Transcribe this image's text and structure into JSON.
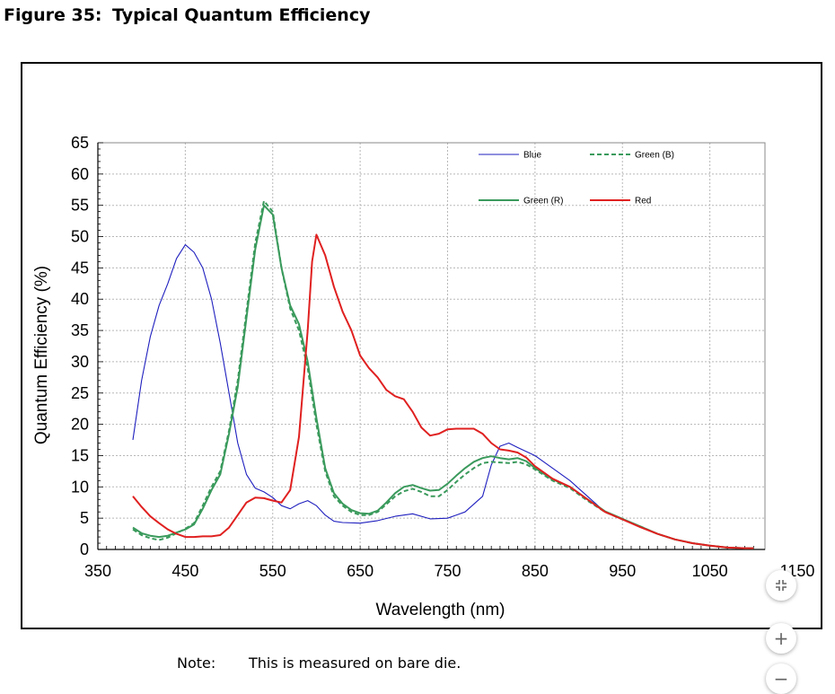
{
  "figure": {
    "number": "Figure 35:",
    "title": "Typical Quantum Efficiency"
  },
  "note": {
    "label": "Note:",
    "text": "This is measured on bare die."
  },
  "controls": {
    "fit_icon": "fit-to-screen-icon",
    "zoom_in_icon": "plus-icon",
    "zoom_out_icon": "minus-icon",
    "zoom_in_label": "+",
    "zoom_out_label": "−"
  },
  "chart_data": {
    "type": "line",
    "title": "",
    "xlabel": "Wavelength (nm)",
    "ylabel": "Quantum Efficiency (%)",
    "xlim": [
      350,
      1150
    ],
    "ylim": [
      0,
      65
    ],
    "xticks": [
      "350",
      "450",
      "550",
      "650",
      "750",
      "850",
      "950",
      "1050",
      "1150"
    ],
    "yticks": [
      "0",
      "5",
      "10",
      "15",
      "20",
      "25",
      "30",
      "35",
      "40",
      "45",
      "50",
      "55",
      "60",
      "65"
    ],
    "grid": true,
    "legend_position": "top-right",
    "series": [
      {
        "name": "Blue",
        "color": "#1f1fbf",
        "style": "solid",
        "points": [
          [
            390,
            17.5
          ],
          [
            400,
            27
          ],
          [
            410,
            34
          ],
          [
            420,
            39
          ],
          [
            430,
            42.5
          ],
          [
            440,
            46.5
          ],
          [
            450,
            48.7
          ],
          [
            460,
            47.5
          ],
          [
            470,
            45
          ],
          [
            480,
            40
          ],
          [
            490,
            33
          ],
          [
            500,
            25
          ],
          [
            510,
            17
          ],
          [
            520,
            12
          ],
          [
            530,
            9.8
          ],
          [
            540,
            9.2
          ],
          [
            550,
            8.3
          ],
          [
            560,
            7.0
          ],
          [
            570,
            6.5
          ],
          [
            580,
            7.3
          ],
          [
            590,
            7.8
          ],
          [
            600,
            7.0
          ],
          [
            610,
            5.5
          ],
          [
            620,
            4.5
          ],
          [
            630,
            4.3
          ],
          [
            650,
            4.2
          ],
          [
            670,
            4.6
          ],
          [
            690,
            5.3
          ],
          [
            710,
            5.7
          ],
          [
            730,
            4.9
          ],
          [
            750,
            5.0
          ],
          [
            770,
            6.0
          ],
          [
            790,
            8.5
          ],
          [
            800,
            13.5
          ],
          [
            810,
            16.5
          ],
          [
            820,
            17.0
          ],
          [
            830,
            16.3
          ],
          [
            850,
            15.0
          ],
          [
            870,
            13.0
          ],
          [
            890,
            11.0
          ],
          [
            910,
            8.5
          ],
          [
            930,
            6.0
          ],
          [
            950,
            4.8
          ],
          [
            970,
            3.6
          ],
          [
            990,
            2.5
          ],
          [
            1010,
            1.6
          ],
          [
            1030,
            1.0
          ],
          [
            1050,
            0.6
          ],
          [
            1070,
            0.3
          ],
          [
            1090,
            0.2
          ],
          [
            1100,
            0.2
          ]
        ]
      },
      {
        "name": "Green (B)",
        "color": "#3a9a5c",
        "style": "dashed",
        "points": [
          [
            390,
            3.2
          ],
          [
            400,
            2.3
          ],
          [
            410,
            1.8
          ],
          [
            420,
            1.5
          ],
          [
            430,
            1.9
          ],
          [
            440,
            2.6
          ],
          [
            450,
            3.3
          ],
          [
            460,
            4.2
          ],
          [
            470,
            7.0
          ],
          [
            480,
            10.0
          ],
          [
            490,
            12.5
          ],
          [
            500,
            19
          ],
          [
            510,
            27
          ],
          [
            520,
            38
          ],
          [
            530,
            49
          ],
          [
            540,
            55.7
          ],
          [
            550,
            54
          ],
          [
            560,
            45
          ],
          [
            570,
            38.5
          ],
          [
            580,
            35
          ],
          [
            590,
            29
          ],
          [
            600,
            20
          ],
          [
            610,
            12.5
          ],
          [
            620,
            8.5
          ],
          [
            630,
            7.0
          ],
          [
            640,
            6.0
          ],
          [
            650,
            5.5
          ],
          [
            660,
            5.5
          ],
          [
            670,
            6.0
          ],
          [
            680,
            7.2
          ],
          [
            690,
            8.5
          ],
          [
            700,
            9.3
          ],
          [
            710,
            9.7
          ],
          [
            720,
            9.2
          ],
          [
            730,
            8.5
          ],
          [
            740,
            8.5
          ],
          [
            750,
            9.5
          ],
          [
            760,
            10.8
          ],
          [
            770,
            12.0
          ],
          [
            780,
            13.0
          ],
          [
            790,
            13.8
          ],
          [
            800,
            14.0
          ],
          [
            810,
            13.9
          ],
          [
            820,
            13.8
          ],
          [
            830,
            14.0
          ],
          [
            840,
            13.6
          ],
          [
            850,
            12.8
          ],
          [
            870,
            11.0
          ],
          [
            890,
            9.8
          ],
          [
            910,
            7.8
          ],
          [
            930,
            6.0
          ],
          [
            950,
            4.8
          ],
          [
            970,
            3.7
          ],
          [
            990,
            2.5
          ],
          [
            1010,
            1.6
          ],
          [
            1030,
            1.0
          ],
          [
            1050,
            0.6
          ],
          [
            1070,
            0.3
          ],
          [
            1090,
            0.2
          ],
          [
            1100,
            0.2
          ]
        ]
      },
      {
        "name": "Green (R)",
        "color": "#3a9a5c",
        "style": "solid",
        "points": [
          [
            390,
            3.5
          ],
          [
            400,
            2.6
          ],
          [
            410,
            2.2
          ],
          [
            420,
            2.0
          ],
          [
            430,
            2.2
          ],
          [
            440,
            2.7
          ],
          [
            450,
            3.2
          ],
          [
            460,
            4.0
          ],
          [
            470,
            6.5
          ],
          [
            480,
            9.5
          ],
          [
            490,
            12.0
          ],
          [
            500,
            18.5
          ],
          [
            510,
            26
          ],
          [
            520,
            37
          ],
          [
            530,
            48
          ],
          [
            540,
            55
          ],
          [
            550,
            53.5
          ],
          [
            560,
            45
          ],
          [
            570,
            39
          ],
          [
            580,
            36
          ],
          [
            590,
            30
          ],
          [
            600,
            21
          ],
          [
            610,
            13
          ],
          [
            620,
            9.0
          ],
          [
            630,
            7.3
          ],
          [
            640,
            6.3
          ],
          [
            650,
            5.8
          ],
          [
            660,
            5.7
          ],
          [
            670,
            6.2
          ],
          [
            680,
            7.5
          ],
          [
            690,
            9.0
          ],
          [
            700,
            10.0
          ],
          [
            710,
            10.3
          ],
          [
            720,
            9.8
          ],
          [
            730,
            9.4
          ],
          [
            740,
            9.5
          ],
          [
            750,
            10.5
          ],
          [
            760,
            11.8
          ],
          [
            770,
            13.0
          ],
          [
            780,
            14.0
          ],
          [
            790,
            14.6
          ],
          [
            800,
            14.9
          ],
          [
            810,
            14.6
          ],
          [
            820,
            14.4
          ],
          [
            830,
            14.6
          ],
          [
            840,
            14.1
          ],
          [
            850,
            13.0
          ],
          [
            870,
            11.2
          ],
          [
            890,
            10.0
          ],
          [
            910,
            8.0
          ],
          [
            930,
            6.1
          ],
          [
            950,
            4.9
          ],
          [
            970,
            3.7
          ],
          [
            990,
            2.5
          ],
          [
            1010,
            1.6
          ],
          [
            1030,
            1.0
          ],
          [
            1050,
            0.6
          ],
          [
            1070,
            0.3
          ],
          [
            1090,
            0.2
          ],
          [
            1100,
            0.2
          ]
        ]
      },
      {
        "name": "Red",
        "color": "#e02020",
        "style": "solid",
        "points": [
          [
            390,
            8.5
          ],
          [
            400,
            6.8
          ],
          [
            410,
            5.3
          ],
          [
            420,
            4.2
          ],
          [
            430,
            3.2
          ],
          [
            440,
            2.5
          ],
          [
            450,
            2.0
          ],
          [
            460,
            2.0
          ],
          [
            470,
            2.1
          ],
          [
            480,
            2.1
          ],
          [
            490,
            2.3
          ],
          [
            500,
            3.5
          ],
          [
            510,
            5.5
          ],
          [
            520,
            7.5
          ],
          [
            530,
            8.3
          ],
          [
            540,
            8.2
          ],
          [
            550,
            7.8
          ],
          [
            560,
            7.5
          ],
          [
            570,
            9.5
          ],
          [
            580,
            18
          ],
          [
            590,
            35
          ],
          [
            595,
            46
          ],
          [
            600,
            50.3
          ],
          [
            610,
            47
          ],
          [
            620,
            42
          ],
          [
            630,
            38
          ],
          [
            640,
            35
          ],
          [
            650,
            31
          ],
          [
            660,
            29
          ],
          [
            670,
            27.5
          ],
          [
            680,
            25.5
          ],
          [
            690,
            24.5
          ],
          [
            700,
            24
          ],
          [
            710,
            22
          ],
          [
            720,
            19.5
          ],
          [
            730,
            18.2
          ],
          [
            740,
            18.5
          ],
          [
            750,
            19.2
          ],
          [
            760,
            19.3
          ],
          [
            770,
            19.3
          ],
          [
            780,
            19.3
          ],
          [
            790,
            18.5
          ],
          [
            800,
            17.0
          ],
          [
            810,
            16.0
          ],
          [
            820,
            15.8
          ],
          [
            830,
            15.5
          ],
          [
            840,
            14.7
          ],
          [
            850,
            13.3
          ],
          [
            870,
            11.3
          ],
          [
            890,
            10.0
          ],
          [
            910,
            8.0
          ],
          [
            930,
            6.0
          ],
          [
            950,
            4.8
          ],
          [
            970,
            3.6
          ],
          [
            990,
            2.5
          ],
          [
            1010,
            1.6
          ],
          [
            1030,
            1.0
          ],
          [
            1050,
            0.6
          ],
          [
            1070,
            0.3
          ],
          [
            1090,
            0.2
          ],
          [
            1100,
            0.2
          ]
        ]
      }
    ]
  }
}
